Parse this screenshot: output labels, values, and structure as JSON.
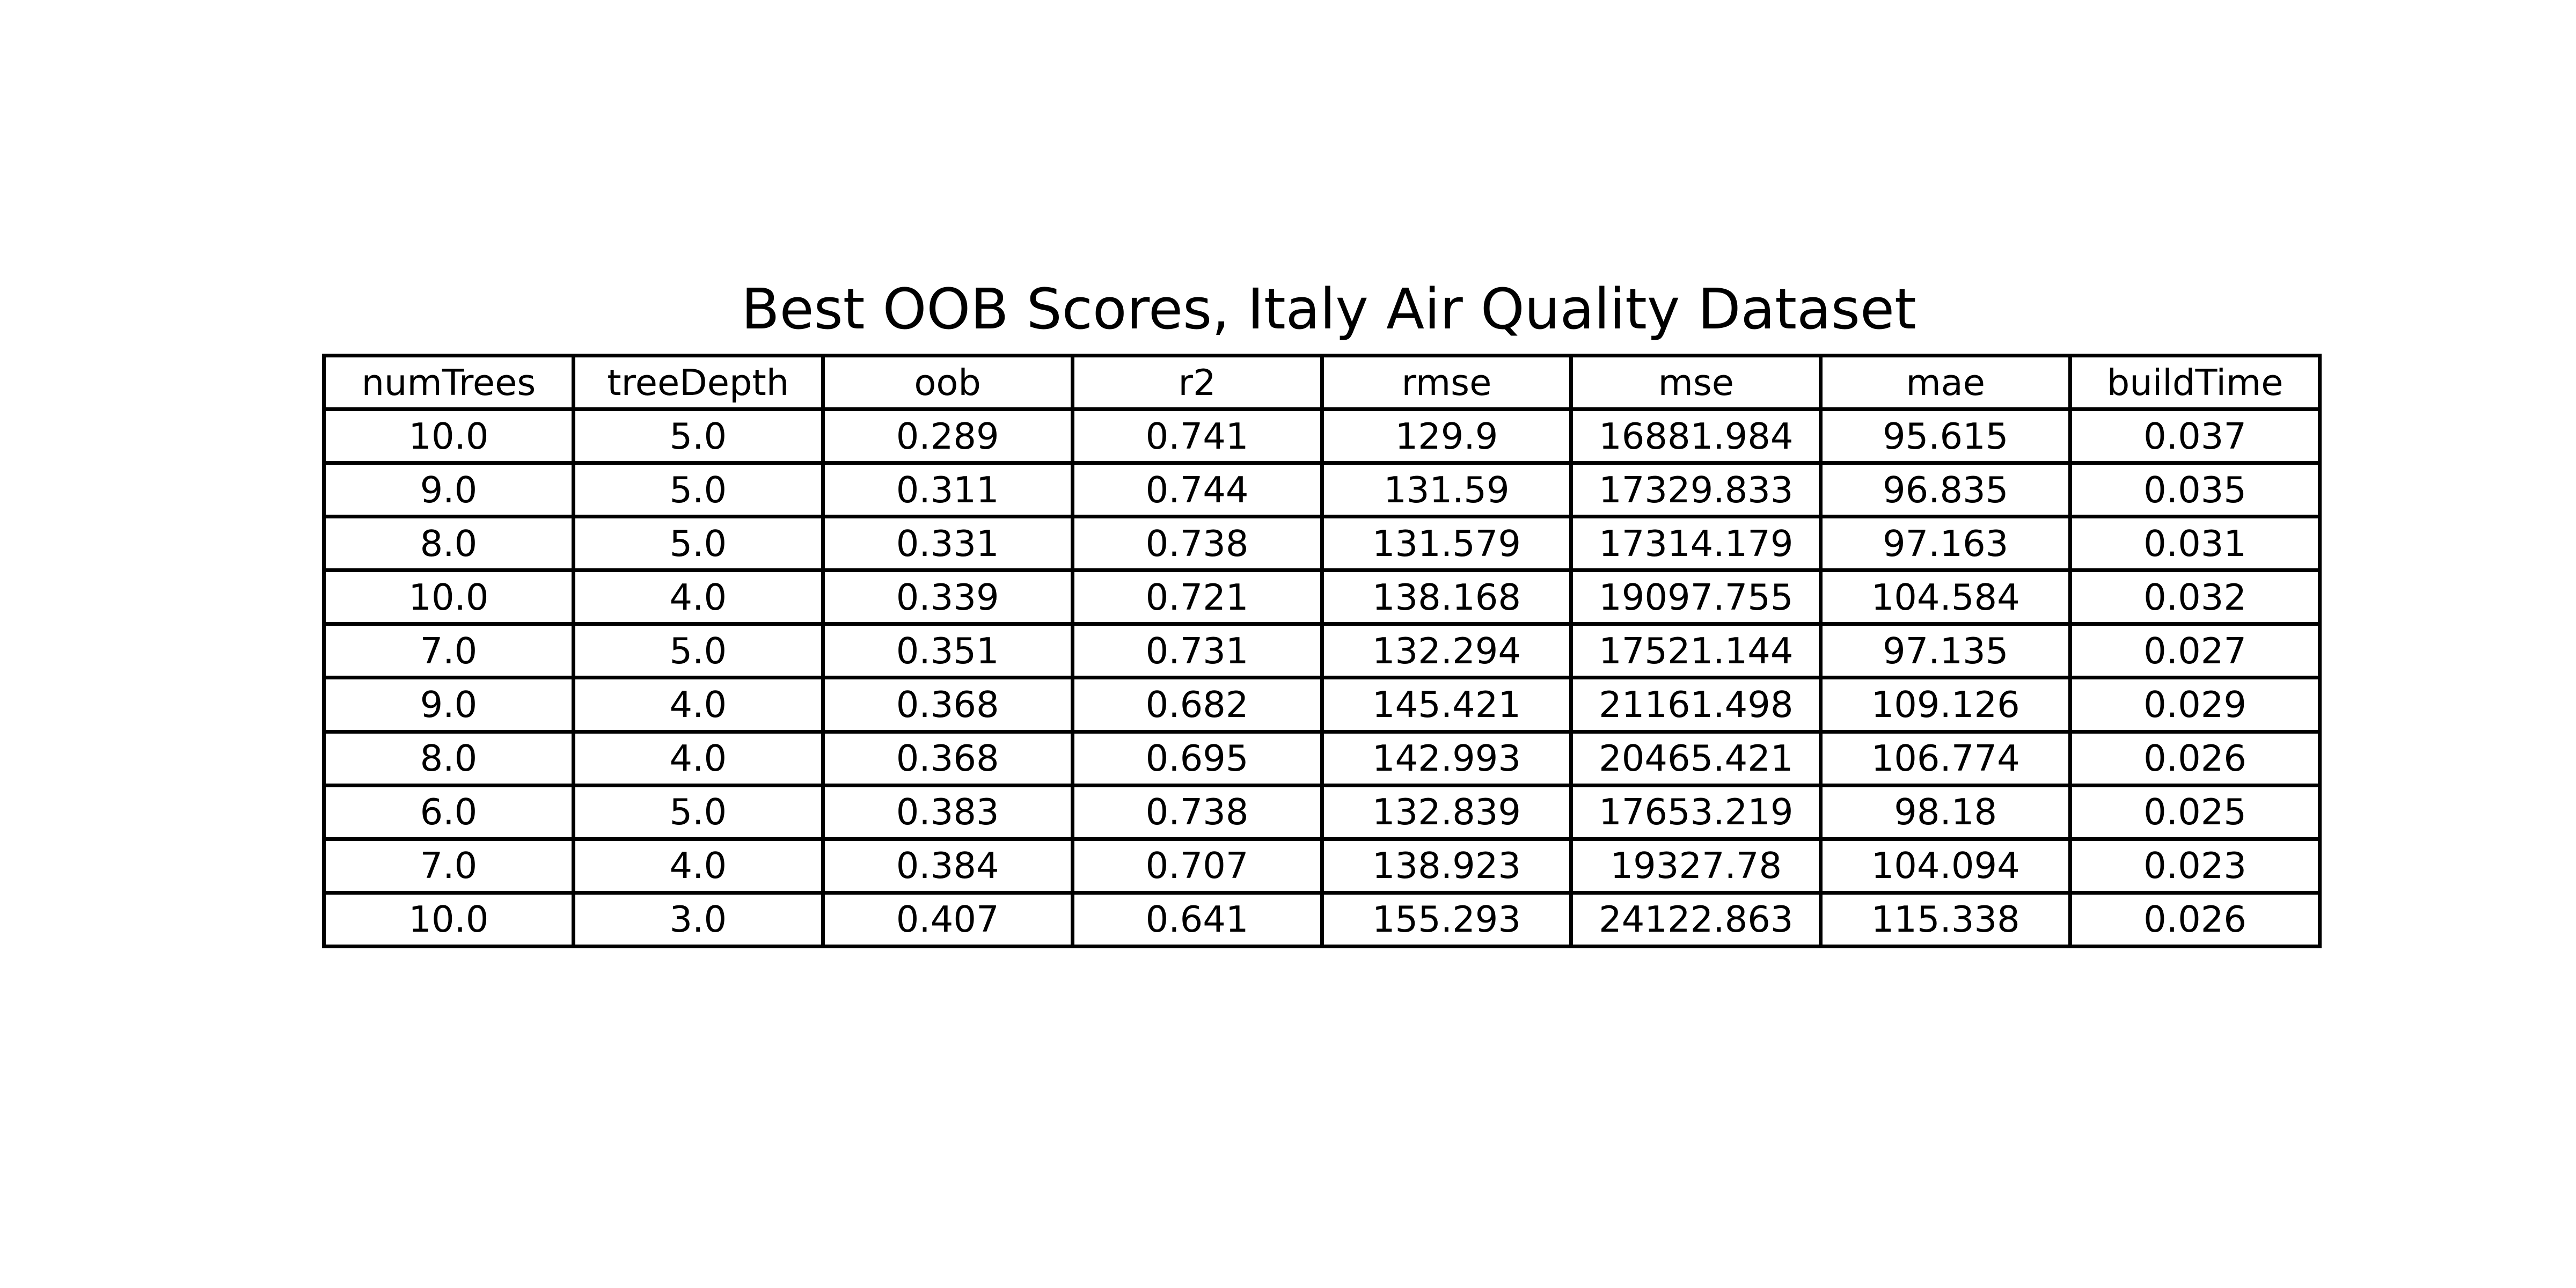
{
  "chart_data": {
    "type": "table",
    "title": "Best OOB Scores, Italy Air Quality Dataset",
    "columns": [
      "numTrees",
      "treeDepth",
      "oob",
      "r2",
      "rmse",
      "mse",
      "mae",
      "buildTime"
    ],
    "rows": [
      [
        "10.0",
        "5.0",
        "0.289",
        "0.741",
        "129.9",
        "16881.984",
        "95.615",
        "0.037"
      ],
      [
        "9.0",
        "5.0",
        "0.311",
        "0.744",
        "131.59",
        "17329.833",
        "96.835",
        "0.035"
      ],
      [
        "8.0",
        "5.0",
        "0.331",
        "0.738",
        "131.579",
        "17314.179",
        "97.163",
        "0.031"
      ],
      [
        "10.0",
        "4.0",
        "0.339",
        "0.721",
        "138.168",
        "19097.755",
        "104.584",
        "0.032"
      ],
      [
        "7.0",
        "5.0",
        "0.351",
        "0.731",
        "132.294",
        "17521.144",
        "97.135",
        "0.027"
      ],
      [
        "9.0",
        "4.0",
        "0.368",
        "0.682",
        "145.421",
        "21161.498",
        "109.126",
        "0.029"
      ],
      [
        "8.0",
        "4.0",
        "0.368",
        "0.695",
        "142.993",
        "20465.421",
        "106.774",
        "0.026"
      ],
      [
        "6.0",
        "5.0",
        "0.383",
        "0.738",
        "132.839",
        "17653.219",
        "98.18",
        "0.025"
      ],
      [
        "7.0",
        "4.0",
        "0.384",
        "0.707",
        "138.923",
        "19327.78",
        "104.094",
        "0.023"
      ],
      [
        "10.0",
        "3.0",
        "0.407",
        "0.641",
        "155.293",
        "24122.863",
        "115.338",
        "0.026"
      ]
    ]
  }
}
